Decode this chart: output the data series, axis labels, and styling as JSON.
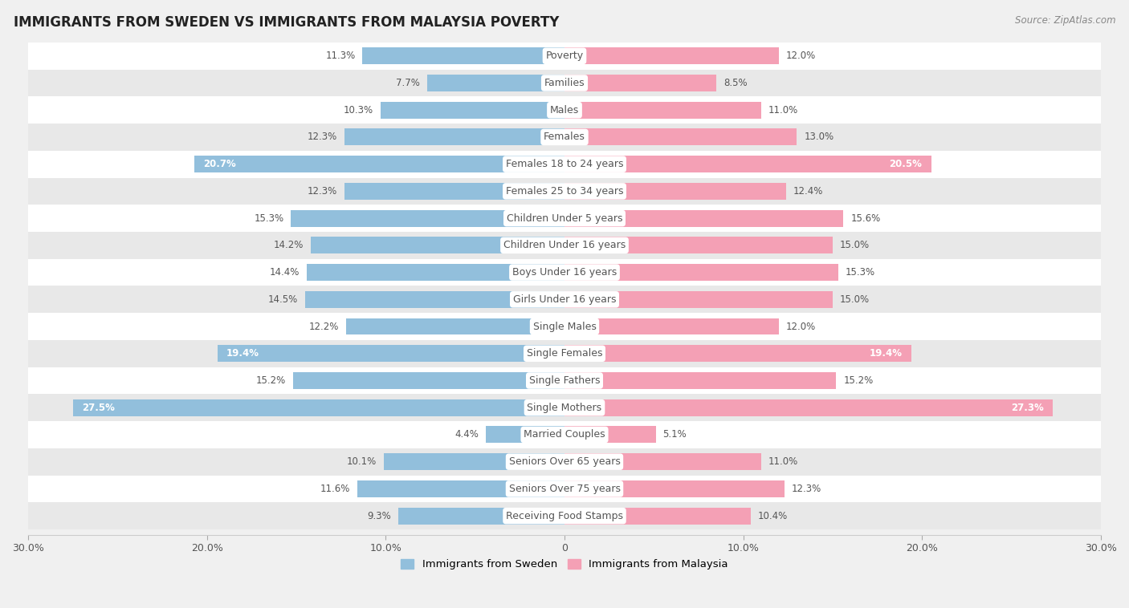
{
  "title": "IMMIGRANTS FROM SWEDEN VS IMMIGRANTS FROM MALAYSIA POVERTY",
  "source": "Source: ZipAtlas.com",
  "categories": [
    "Poverty",
    "Families",
    "Males",
    "Females",
    "Females 18 to 24 years",
    "Females 25 to 34 years",
    "Children Under 5 years",
    "Children Under 16 years",
    "Boys Under 16 years",
    "Girls Under 16 years",
    "Single Males",
    "Single Females",
    "Single Fathers",
    "Single Mothers",
    "Married Couples",
    "Seniors Over 65 years",
    "Seniors Over 75 years",
    "Receiving Food Stamps"
  ],
  "sweden_values": [
    11.3,
    7.7,
    10.3,
    12.3,
    20.7,
    12.3,
    15.3,
    14.2,
    14.4,
    14.5,
    12.2,
    19.4,
    15.2,
    27.5,
    4.4,
    10.1,
    11.6,
    9.3
  ],
  "malaysia_values": [
    12.0,
    8.5,
    11.0,
    13.0,
    20.5,
    12.4,
    15.6,
    15.0,
    15.3,
    15.0,
    12.0,
    19.4,
    15.2,
    27.3,
    5.1,
    11.0,
    12.3,
    10.4
  ],
  "sweden_color": "#92BFDC",
  "malaysia_color": "#F4A0B5",
  "axis_max": 30.0,
  "background_color": "#f0f0f0",
  "row_color_even": "#ffffff",
  "row_color_odd": "#e8e8e8",
  "legend_sweden": "Immigrants from Sweden",
  "legend_malaysia": "Immigrants from Malaysia",
  "label_pill_color": "#ffffff",
  "label_text_color": "#555555",
  "value_text_color_inside": "#ffffff",
  "value_text_color_outside": "#555555"
}
